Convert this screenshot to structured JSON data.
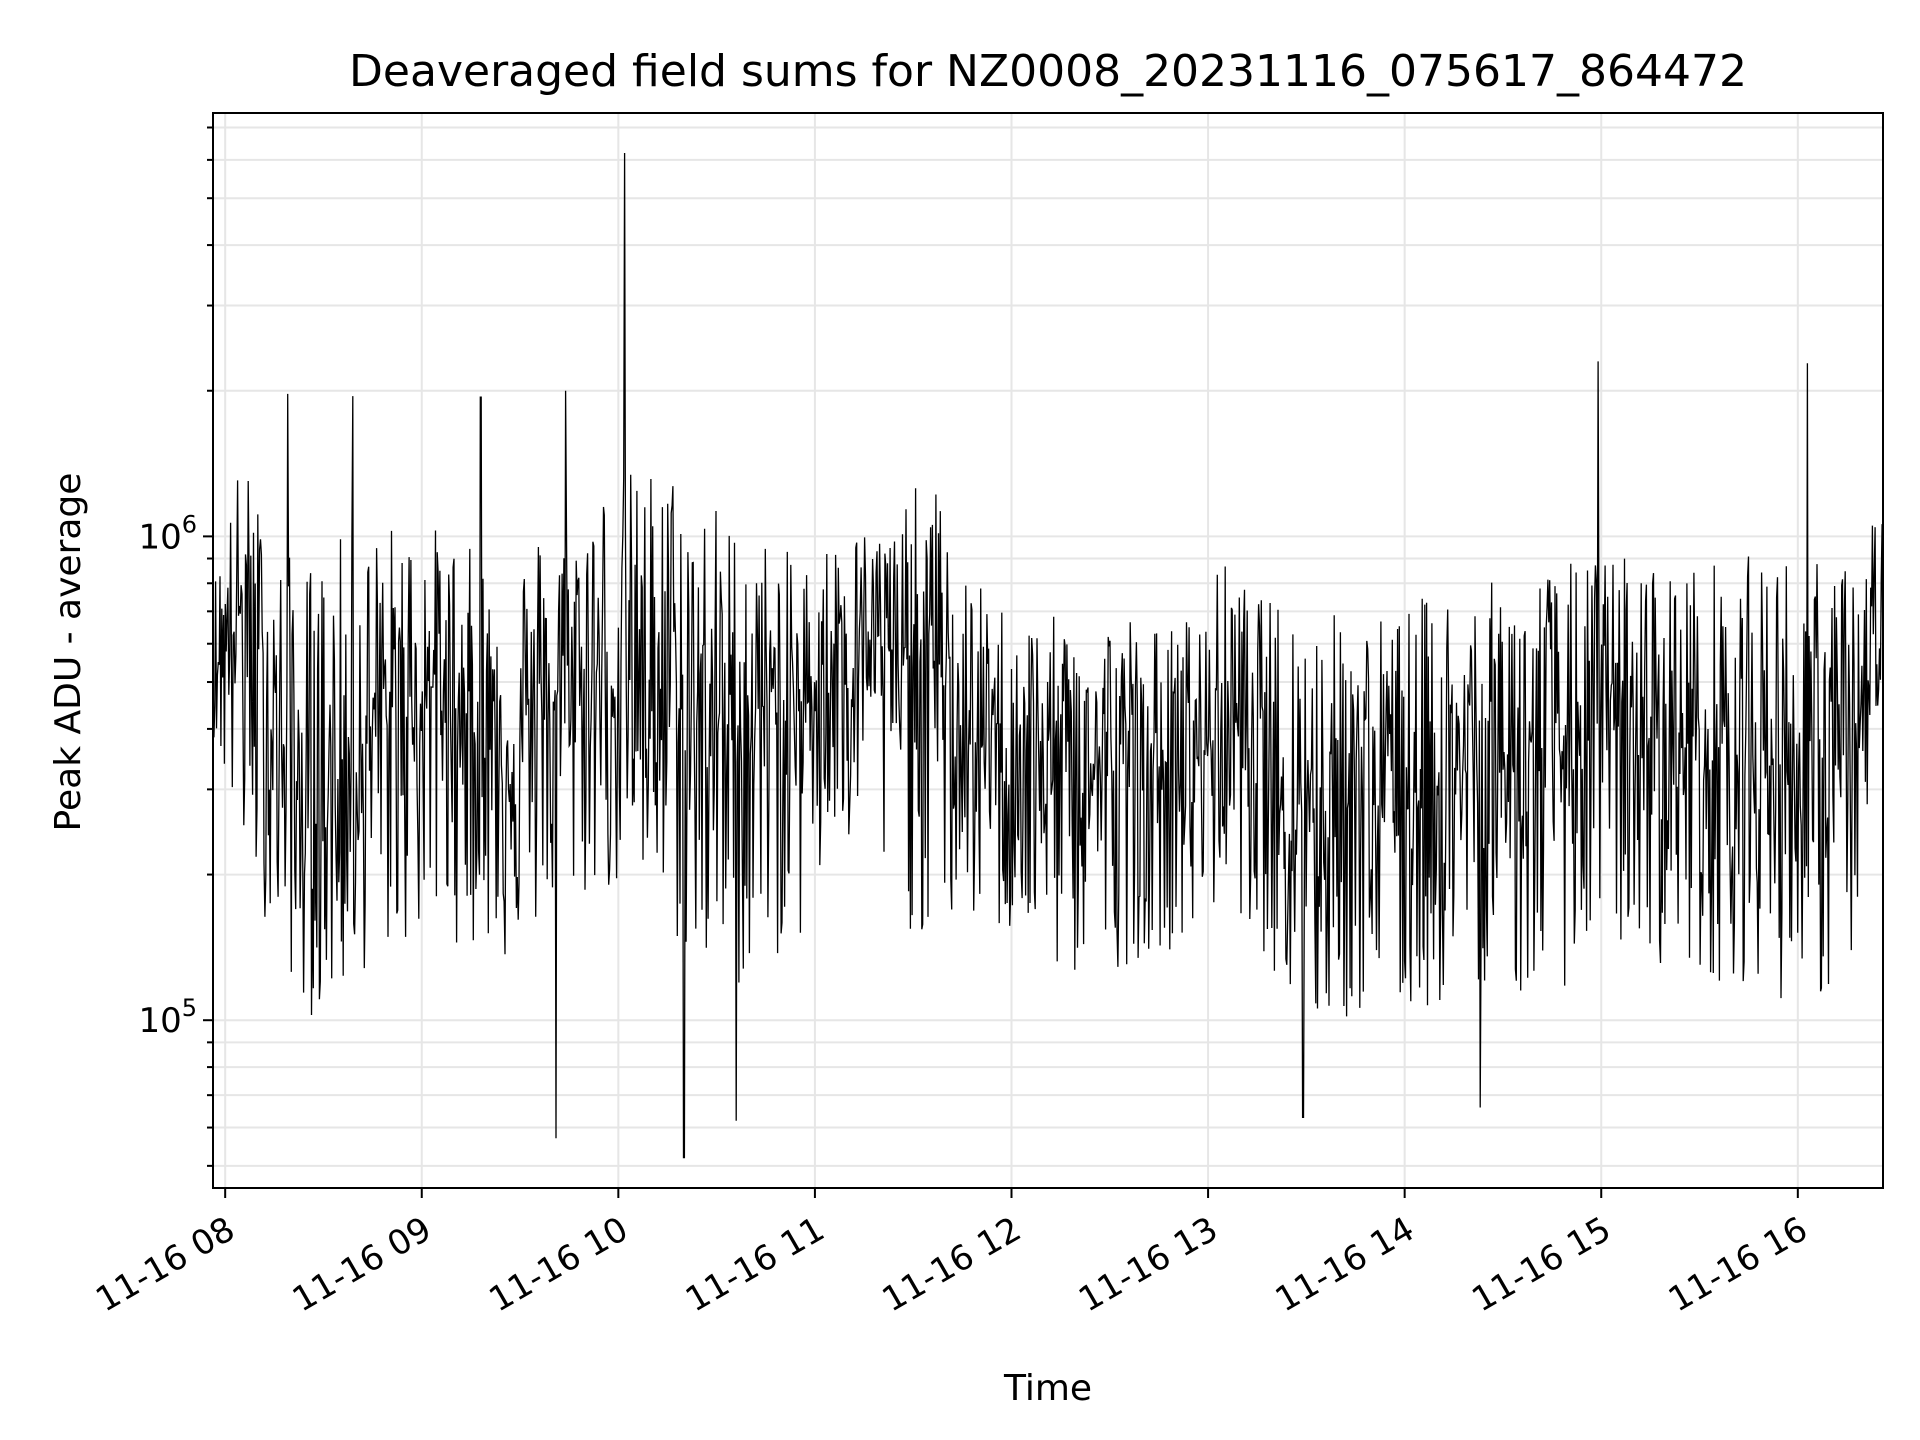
{
  "chart_data": {
    "type": "line",
    "title": "Deaveraged field sums for NZ0008_20231116_075617_864472",
    "xlabel": "Time",
    "ylabel": "Peak ADU - average",
    "yscale": "log",
    "ylim": [
      45000,
      7500000
    ],
    "xlim": [
      "2023-11-16 07:56:17",
      "2023-11-16 16:26:00"
    ],
    "grid": true,
    "line_color": "#000000",
    "x_ticks": [
      "11-16 08",
      "11-16 09",
      "11-16 10",
      "11-16 11",
      "11-16 12",
      "11-16 13",
      "11-16 14",
      "11-16 15",
      "11-16 16"
    ],
    "x_tick_times": [
      "2023-11-16 08:00",
      "2023-11-16 09:00",
      "2023-11-16 10:00",
      "2023-11-16 11:00",
      "2023-11-16 12:00",
      "2023-11-16 13:00",
      "2023-11-16 14:00",
      "2023-11-16 15:00",
      "2023-11-16 16:00"
    ],
    "y_ticks": [
      {
        "value": 100000,
        "base": "10",
        "exp": "5"
      },
      {
        "value": 1000000,
        "base": "10",
        "exp": "6"
      }
    ],
    "series": [
      {
        "x": [
          "2023-11-16 07:56",
          "2023-11-16 08:05",
          "2023-11-16 08:15",
          "2023-11-16 08:25",
          "2023-11-16 08:35",
          "2023-11-16 08:45",
          "2023-11-16 08:55",
          "2023-11-16 09:05",
          "2023-11-16 09:15",
          "2023-11-16 09:25",
          "2023-11-16 09:35",
          "2023-11-16 09:45",
          "2023-11-16 09:55",
          "2023-11-16 10:05",
          "2023-11-16 10:15",
          "2023-11-16 10:25",
          "2023-11-16 10:35",
          "2023-11-16 10:45",
          "2023-11-16 10:55",
          "2023-11-16 11:05",
          "2023-11-16 11:15",
          "2023-11-16 11:25",
          "2023-11-16 11:35",
          "2023-11-16 11:45",
          "2023-11-16 11:55",
          "2023-11-16 12:05",
          "2023-11-16 12:15",
          "2023-11-16 12:25",
          "2023-11-16 12:35",
          "2023-11-16 12:45",
          "2023-11-16 12:55",
          "2023-11-16 13:05",
          "2023-11-16 13:15",
          "2023-11-16 13:25",
          "2023-11-16 13:35",
          "2023-11-16 13:45",
          "2023-11-16 13:55",
          "2023-11-16 14:05",
          "2023-11-16 14:15",
          "2023-11-16 14:25",
          "2023-11-16 14:35",
          "2023-11-16 14:45",
          "2023-11-16 14:55",
          "2023-11-16 15:05",
          "2023-11-16 15:15",
          "2023-11-16 15:25",
          "2023-11-16 15:35",
          "2023-11-16 15:45",
          "2023-11-16 15:55",
          "2023-11-16 16:05",
          "2023-11-16 16:15",
          "2023-11-16 16:25"
        ],
        "median": [
          550000,
          700000,
          400000,
          250000,
          300000,
          400000,
          450000,
          500000,
          400000,
          350000,
          420000,
          500000,
          500000,
          500000,
          480000,
          420000,
          400000,
          450000,
          420000,
          600000,
          650000,
          550000,
          600000,
          380000,
          360000,
          350000,
          340000,
          330000,
          330000,
          330000,
          330000,
          430000,
          380000,
          300000,
          280000,
          300000,
          280000,
          300000,
          320000,
          330000,
          340000,
          350000,
          380000,
          400000,
          380000,
          370000,
          360000,
          350000,
          340000,
          330000,
          320000,
          600000
        ],
        "high": [
          800000,
          1500000,
          950000,
          900000,
          1000000,
          1050000,
          1100000,
          1050000,
          950000,
          900000,
          1050000,
          1150000,
          1350000,
          1400000,
          1450000,
          1300000,
          1100000,
          1000000,
          900000,
          1000000,
          1050000,
          1100000,
          1400000,
          850000,
          750000,
          700000,
          680000,
          700000,
          720000,
          650000,
          700000,
          900000,
          750000,
          750000,
          700000,
          720000,
          700000,
          750000,
          820000,
          800000,
          850000,
          880000,
          900000,
          950000,
          900000,
          880000,
          900000,
          920000,
          950000,
          900000,
          880000,
          1300000
        ],
        "low": [
          400000,
          200000,
          150000,
          100000,
          110000,
          130000,
          140000,
          150000,
          140000,
          130000,
          150000,
          170000,
          180000,
          180000,
          150000,
          120000,
          110000,
          130000,
          140000,
          200000,
          220000,
          160000,
          140000,
          160000,
          150000,
          140000,
          120000,
          120000,
          130000,
          140000,
          140000,
          180000,
          150000,
          100000,
          90000,
          100000,
          100000,
          100000,
          110000,
          120000,
          110000,
          110000,
          130000,
          140000,
          130000,
          130000,
          120000,
          120000,
          110000,
          110000,
          110000,
          400000
        ]
      }
    ],
    "spikes": [
      {
        "x": "2023-11-16 08:19",
        "y": 1970000
      },
      {
        "x": "2023-11-16 08:39",
        "y": 1950000
      },
      {
        "x": "2023-11-16 09:18",
        "y": 1940000
      },
      {
        "x": "2023-11-16 09:44",
        "y": 2000000
      },
      {
        "x": "2023-11-16 10:02",
        "y": 6200000
      },
      {
        "x": "2023-11-16 14:59",
        "y": 2300000
      },
      {
        "x": "2023-11-16 16:03",
        "y": 2280000
      },
      {
        "x": "2023-11-16 09:41",
        "y": 57000
      },
      {
        "x": "2023-11-16 10:20",
        "y": 52000
      },
      {
        "x": "2023-11-16 10:36",
        "y": 62000
      },
      {
        "x": "2023-11-16 13:29",
        "y": 63000
      },
      {
        "x": "2023-11-16 14:23",
        "y": 66000
      }
    ]
  }
}
